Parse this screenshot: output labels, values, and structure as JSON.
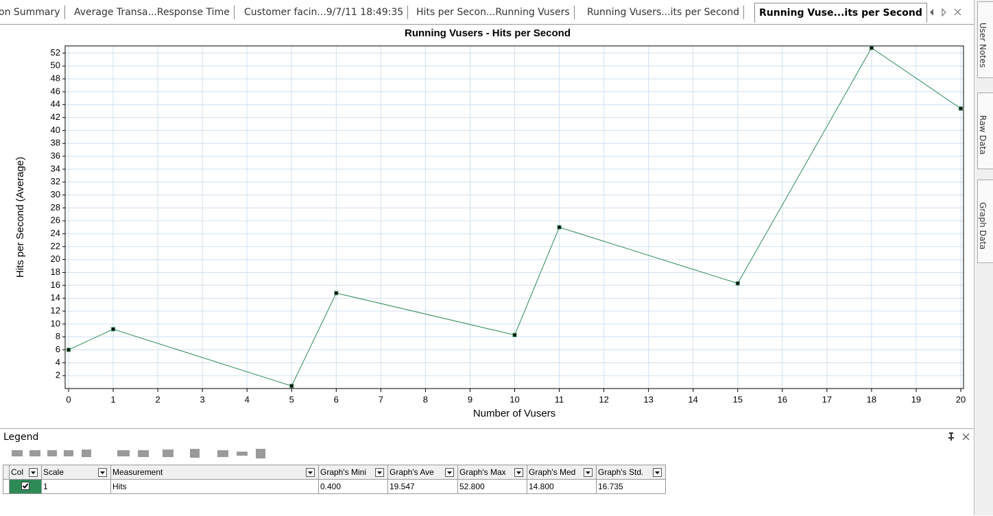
{
  "tabs": [
    "on Summary",
    "Average Transa...Response Time",
    "Customer facin...9/7/11 18:49:35",
    "Hits per Secon...Running Vusers",
    "Running Vusers...its per Second",
    "Running Vuse...its per Second"
  ],
  "chart_data": {
    "type": "line",
    "title": "Running Vusers - Hits per Second",
    "x_label": "Number of Vusers",
    "y_label": "Hits per Second (Average)",
    "x": [
      0,
      1,
      5,
      6,
      10,
      11,
      15,
      18,
      20
    ],
    "series": [
      {
        "name": "Hits",
        "color": "#2e8b57",
        "values": [
          6.0,
          9.2,
          0.4,
          14.8,
          8.3,
          25.0,
          16.3,
          52.8,
          43.4
        ]
      }
    ],
    "xlim": [
      0,
      20
    ],
    "xticks": [
      0,
      1,
      2,
      3,
      4,
      5,
      6,
      7,
      8,
      9,
      10,
      11,
      12,
      13,
      14,
      15,
      16,
      17,
      18,
      19,
      20
    ],
    "ylim": [
      0,
      53
    ],
    "yticks": [
      2,
      4,
      6,
      8,
      10,
      12,
      14,
      16,
      18,
      20,
      22,
      24,
      26,
      28,
      30,
      32,
      34,
      36,
      38,
      40,
      42,
      44,
      46,
      48,
      50,
      52
    ],
    "grid": true
  },
  "legend": {
    "title": "Legend",
    "columns": [
      "Col",
      "Scale",
      "Measurement",
      "Graph's Mini",
      "Graph's Ave",
      "Graph's Max",
      "Graph's Med",
      "Graph's Std."
    ],
    "row": {
      "scale": "1",
      "min": "0.400",
      "avg": "19.547",
      "max": "52.800",
      "median": "14.800",
      "std": "16.735"
    }
  },
  "side_tabs": [
    "User Notes",
    "Raw Data",
    "Graph Data"
  ]
}
